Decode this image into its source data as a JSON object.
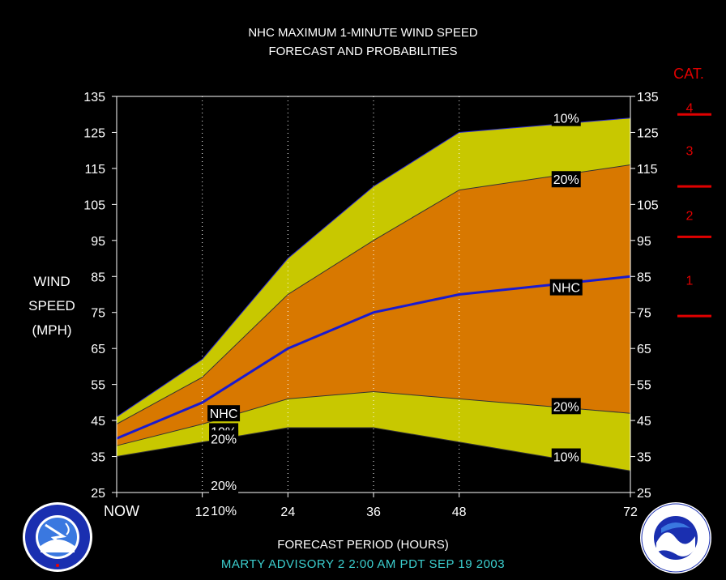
{
  "header": {
    "title_line1": "NHC MAXIMUM 1-MINUTE WIND SPEED",
    "title_line2": "FORECAST AND PROBABILITIES"
  },
  "y_axis_label": [
    "WIND",
    "SPEED",
    "(MPH)"
  ],
  "x_axis_label": "FORECAST PERIOD (HOURS)",
  "footer": "MARTY   ADVISORY  2  2:00  AM  PDT  SEP  19  2003",
  "category_header": "CAT.",
  "colors": {
    "outer_band": "#c8c800",
    "inner_band": "#d87800",
    "nhc_line": "#1a1ad0",
    "category_red": "#e00000",
    "footer": "#3cd0d0"
  },
  "logos": [
    "nws-logo",
    "noaa-logo"
  ],
  "chart_data": {
    "type": "area",
    "title": "NHC MAXIMUM 1-MINUTE WIND SPEED FORECAST AND PROBABILITIES",
    "xlabel": "FORECAST PERIOD (HOURS)",
    "ylabel": "WIND SPEED (MPH)",
    "x_ticks": [
      "NOW",
      "12",
      "24",
      "36",
      "48",
      "72"
    ],
    "x": [
      0,
      12,
      24,
      36,
      48,
      72
    ],
    "xlim": [
      0,
      72
    ],
    "ylim": [
      25,
      135
    ],
    "y_ticks": [
      25,
      35,
      45,
      55,
      65,
      75,
      85,
      95,
      105,
      115,
      125,
      135
    ],
    "vertical_grid": "dotted",
    "series": [
      {
        "name": "10%",
        "values": [
          46,
          62,
          90,
          110,
          125,
          129
        ],
        "label_at": [
          15,
          42,
          129
        ]
      },
      {
        "name": "20%",
        "values": [
          44,
          57,
          80,
          95,
          109,
          116
        ],
        "label_at": [
          15,
          40,
          112
        ]
      },
      {
        "name": "NHC",
        "values": [
          40,
          50,
          65,
          75,
          80,
          85
        ],
        "label_at": [
          15,
          47,
          82
        ]
      },
      {
        "name": "20%",
        "values": [
          38,
          44,
          51,
          53,
          51,
          47
        ],
        "label_at": [
          15,
          27,
          49
        ]
      },
      {
        "name": "10%",
        "values": [
          35,
          39,
          43,
          43,
          39,
          31
        ],
        "label_at": [
          15,
          20,
          35
        ]
      }
    ],
    "category_scale": {
      "labels": [
        {
          "text": "4",
          "mph": 132
        },
        {
          "text": "3",
          "mph": 120
        },
        {
          "text": "2",
          "mph": 102
        },
        {
          "text": "1",
          "mph": 84
        }
      ],
      "boundaries": [
        130,
        110,
        96,
        74
      ]
    }
  }
}
